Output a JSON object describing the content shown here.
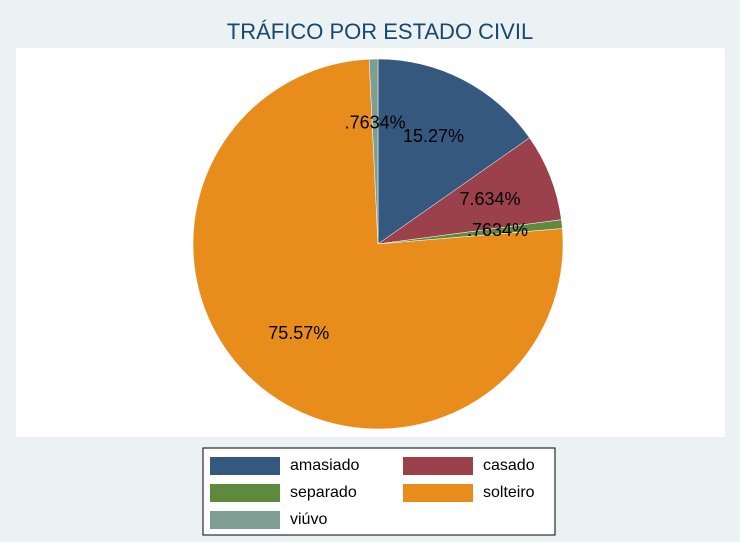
{
  "chart_data": {
    "type": "pie",
    "title": "TRÁFICO POR ESTADO CIVIL",
    "categories": [
      "amasiado",
      "casado",
      "separado",
      "solteiro",
      "viúvo"
    ],
    "values": [
      15.27,
      7.634,
      0.7634,
      75.57,
      0.7634
    ],
    "value_labels": [
      "15.27%",
      "7.634%",
      ".7634%",
      "75.57%",
      ".7634%"
    ],
    "colors": [
      "#34587e",
      "#9a414b",
      "#5d8a3c",
      "#e88d1c",
      "#7f9e93"
    ],
    "legend": "bottom"
  }
}
